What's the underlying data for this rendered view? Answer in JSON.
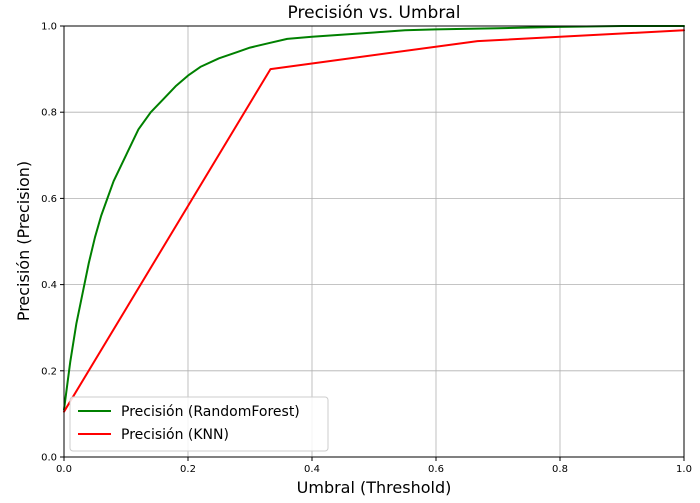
{
  "chart_data": {
    "type": "line",
    "title": "Precisión vs. Umbral",
    "xlabel": "Umbral (Threshold)",
    "ylabel": "Precisión (Precision)",
    "xlim": [
      0.0,
      1.0
    ],
    "ylim": [
      0.0,
      1.0
    ],
    "xticks": [
      "0.0",
      "0.2",
      "0.4",
      "0.6",
      "0.8",
      "1.0"
    ],
    "yticks": [
      "0.0",
      "0.2",
      "0.4",
      "0.6",
      "0.8",
      "1.0"
    ],
    "grid": true,
    "legend_position": "lower-left",
    "series": [
      {
        "name": "Precisión (RandomForest)",
        "color": "#008000",
        "x": [
          0.0,
          0.01,
          0.02,
          0.03,
          0.04,
          0.05,
          0.06,
          0.07,
          0.08,
          0.1,
          0.12,
          0.14,
          0.16,
          0.18,
          0.2,
          0.22,
          0.25,
          0.28,
          0.3,
          0.33,
          0.36,
          0.4,
          0.45,
          0.5,
          0.55,
          0.6,
          0.7,
          0.8,
          0.9,
          1.0
        ],
        "y": [
          0.11,
          0.22,
          0.31,
          0.38,
          0.45,
          0.51,
          0.56,
          0.6,
          0.64,
          0.7,
          0.76,
          0.8,
          0.83,
          0.86,
          0.885,
          0.905,
          0.925,
          0.94,
          0.95,
          0.96,
          0.97,
          0.975,
          0.98,
          0.985,
          0.99,
          0.992,
          0.995,
          0.998,
          1.0,
          1.0
        ]
      },
      {
        "name": "Precisión (KNN)",
        "color": "#ff0000",
        "x": [
          0.0,
          0.333,
          0.667,
          1.0
        ],
        "y": [
          0.105,
          0.9,
          0.965,
          0.99
        ]
      }
    ]
  }
}
